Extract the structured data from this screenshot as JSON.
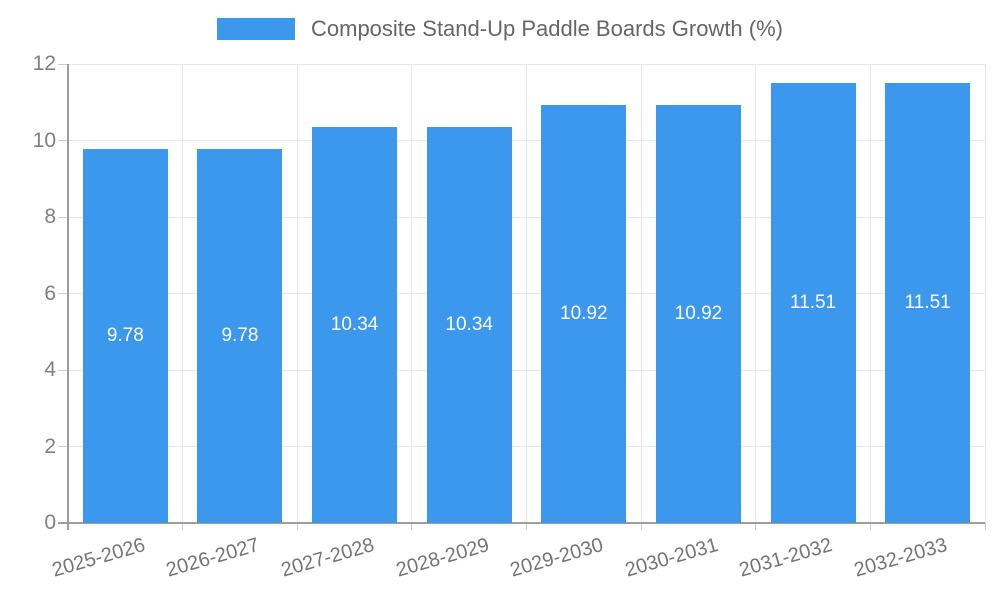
{
  "chart_data": {
    "type": "bar",
    "title": "",
    "legend_label": "Composite Stand-Up Paddle Boards Growth (%)",
    "legend_position": "top",
    "categories": [
      "2025-2026",
      "2026-2027",
      "2027-2028",
      "2028-2029",
      "2029-2030",
      "2030-2031",
      "2031-2032",
      "2032-2033"
    ],
    "values": [
      9.78,
      9.78,
      10.34,
      10.34,
      10.92,
      10.92,
      11.51,
      11.51
    ],
    "bar_labels": [
      "9.78",
      "9.78",
      "10.34",
      "10.34",
      "10.92",
      "10.92",
      "11.51",
      "11.51"
    ],
    "xlabel": "",
    "ylabel": "",
    "ylim": [
      0,
      12
    ],
    "yticks": [
      0,
      2,
      4,
      6,
      8,
      10,
      12
    ],
    "grid": true,
    "colors": {
      "bar": "#3b98ec",
      "bar_label": "#ffffff",
      "grid": "#e8e8e8",
      "axis": "#9d9d9d",
      "minor_tick": "#cccccc",
      "ytick_label": "#808080",
      "xtick_label": "#757575",
      "legend_text": "#666666",
      "background": "#ffffff"
    }
  }
}
